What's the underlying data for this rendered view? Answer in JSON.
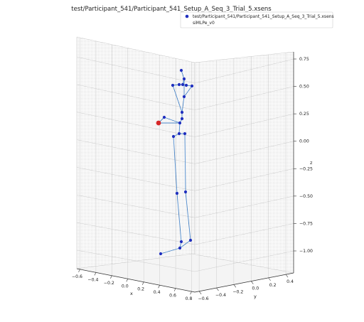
{
  "chart_data": {
    "type": "scatter",
    "projection": "3d",
    "title": "test/Participant_541/Participant_541_Setup_A_Seq_3_Trial_5.xsens",
    "xlabel": "x",
    "ylabel": "y",
    "zlabel": "z",
    "xlim": [
      -0.6,
      0.8
    ],
    "ylim": [
      -0.6,
      0.6
    ],
    "zlim": [
      -1.1,
      0.8
    ],
    "x_ticks": [
      "−0.6",
      "−0.4",
      "−0.2",
      "0.0",
      "0.2",
      "0.4",
      "0.6",
      "0.8"
    ],
    "y_ticks": [
      "−0.6",
      "−0.4",
      "−0.2",
      "0.0",
      "0.2",
      "0.4"
    ],
    "z_ticks": [
      "−1.00",
      "−0.75",
      "−0.50",
      "−0.25",
      "0.00",
      "0.25",
      "0.50",
      "0.75"
    ],
    "grid": true,
    "legend_position": "top-right",
    "series": [
      {
        "name": "test/Participant_541/Participant_541_Setup_A_Seq_3_Trial_5.xsens",
        "color": "#1f2fbf",
        "marker": "circle"
      },
      {
        "name": "siMLPe_v0",
        "color": "#d62728",
        "marker": "circle"
      }
    ]
  }
}
